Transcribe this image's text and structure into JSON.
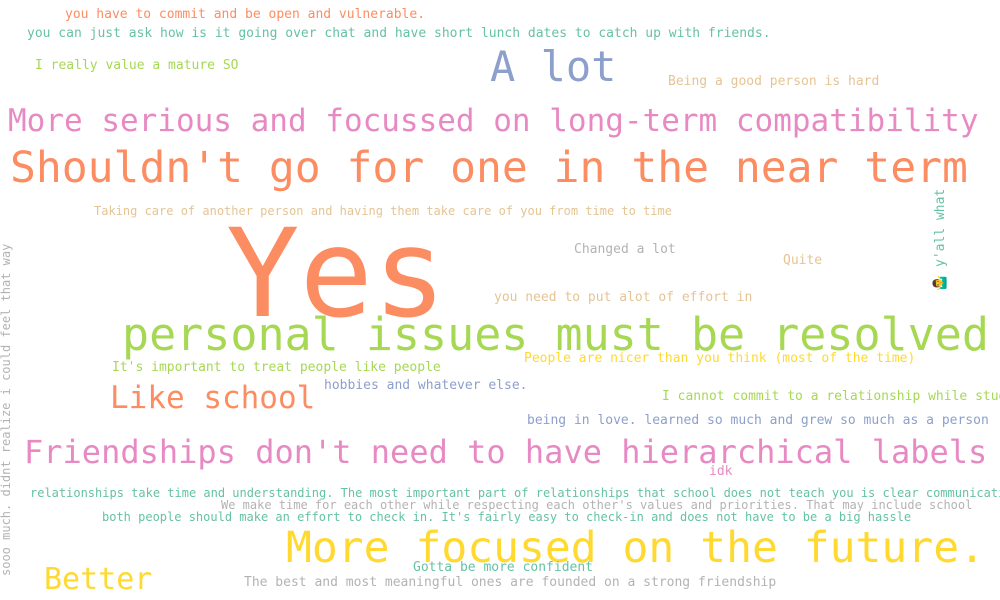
{
  "colors": {
    "background": "#ffffff",
    "orange": "#fc8d62",
    "blue": "#8da0cb",
    "pink": "#e78ac3",
    "green": "#a6d854",
    "yellow": "#ffd92f",
    "tan": "#e5c494",
    "gray": "#b3b3b3",
    "teal": "#66c2a5"
  },
  "phrases": [
    {
      "text": "you have to commit and be open and vulnerable.",
      "color": "#fc8d62"
    },
    {
      "text": "you can just ask how is it going over chat and have short lunch dates to catch up with friends.",
      "color": "#66c2a5"
    },
    {
      "text": "I really value a mature SO",
      "color": "#a6d854"
    },
    {
      "text": "A lot",
      "color": "#8da0cb"
    },
    {
      "text": "Being a good person is hard",
      "color": "#e5c494"
    },
    {
      "text": "More serious and focussed on long-term compatibility",
      "color": "#e78ac3"
    },
    {
      "text": "Shouldn't go for one in the near term",
      "color": "#fc8d62"
    },
    {
      "text": "Taking care of another person and having them take care of you from time to time",
      "color": "#e5c494"
    },
    {
      "text": "Changed a lot",
      "color": "#b3b3b3"
    },
    {
      "text": "Quite",
      "color": "#e5c494"
    },
    {
      "text": "Yes",
      "color": "#fc8d62"
    },
    {
      "text": "you need to put alot of effort in",
      "color": "#e5c494"
    },
    {
      "text": "personal issues must be resolved",
      "color": "#a6d854"
    },
    {
      "text": "People are nicer than you think (most of the time)",
      "color": "#ffd92f"
    },
    {
      "text": "It's important to treat people like people",
      "color": "#a6d854"
    },
    {
      "text": "hobbies and whatever else.",
      "color": "#8da0cb"
    },
    {
      "text": "Like school",
      "color": "#fc8d62"
    },
    {
      "text": "I cannot commit to a relationship while studying",
      "color": "#a6d854"
    },
    {
      "text": "being in love. learned so much and grew so much as a person",
      "color": "#8da0cb"
    },
    {
      "text": "Friendships don't need to have hierarchical labels",
      "color": "#e78ac3"
    },
    {
      "text": "idk",
      "color": "#e78ac3"
    },
    {
      "text": "relationships take time and understanding. The most important part of relationships that school does not teach you is clear communication.",
      "color": "#66c2a5"
    },
    {
      "text": "We make time for each other while respecting each other's values and priorities. That may include school",
      "color": "#b3b3b3"
    },
    {
      "text": "both people should make an effort to check in. It's fairly easy to check-in and does not have to be a big hassle",
      "color": "#66c2a5"
    },
    {
      "text": "More focused on the future.",
      "color": "#ffd92f"
    },
    {
      "text": "Gotta be more confident",
      "color": "#66c2a5"
    },
    {
      "text": "Better",
      "color": "#ffd92f"
    },
    {
      "text": "The best and most meaningful ones are founded on a strong friendship",
      "color": "#b3b3b3"
    },
    {
      "text": "sooo much. didnt realize i could feel that way",
      "color": "#b3b3b3"
    },
    {
      "text": "🤷‍♂️ y'all what",
      "color": "#66c2a5"
    }
  ]
}
